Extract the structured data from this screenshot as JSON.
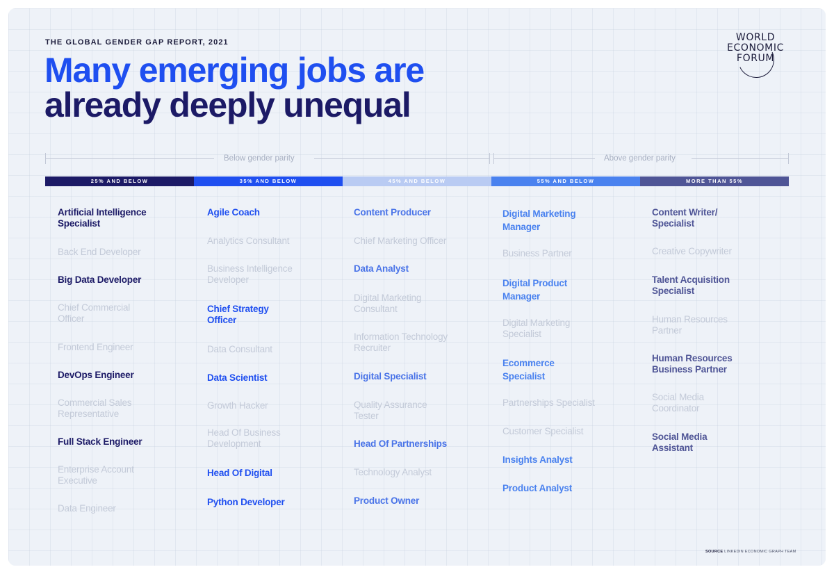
{
  "header": {
    "report_label": "THE GLOBAL GENDER GAP REPORT, 2021",
    "title_line1": "Many emerging jobs are",
    "title_line2": "already deeply unequal"
  },
  "logo": {
    "line1": "WORLD",
    "line2": "ECONOMIC",
    "line3": "FORUM"
  },
  "parity": {
    "below": "Below gender parity",
    "above": "Above gender parity"
  },
  "colors": {
    "band_25": "#1c1a66",
    "band_35": "#1f4ff0",
    "band_45": "#b9cbf3",
    "band_55": "#4a82ef",
    "band_more": "#4f5596"
  },
  "chart_data": {
    "type": "table",
    "columns": [
      {
        "header": "25% AND BELOW",
        "color": "#1c1a66",
        "jobs": [
          {
            "name": "Artificial Intelligence Specialist",
            "highlight": true
          },
          {
            "name": "Back End Developer",
            "highlight": false
          },
          {
            "name": "Big Data Developer",
            "highlight": true
          },
          {
            "name": "Chief Commercial Officer",
            "highlight": false
          },
          {
            "name": "Frontend Engineer",
            "highlight": false
          },
          {
            "name": "DevOps Engineer",
            "highlight": true
          },
          {
            "name": "Commercial Sales Representative",
            "highlight": false
          },
          {
            "name": "Full Stack Engineer",
            "highlight": true
          },
          {
            "name": "Enterprise Account Executive",
            "highlight": false
          },
          {
            "name": "Data Engineer",
            "highlight": false
          }
        ]
      },
      {
        "header": "35% AND BELOW",
        "color": "#1f4ff0",
        "jobs": [
          {
            "name": "Agile Coach",
            "highlight": true
          },
          {
            "name": "Analytics Consultant",
            "highlight": false
          },
          {
            "name": "Business Intelligence Developer",
            "highlight": false
          },
          {
            "name": "Chief Strategy Officer",
            "highlight": true
          },
          {
            "name": "Data Consultant",
            "highlight": false
          },
          {
            "name": "Data Scientist",
            "highlight": true
          },
          {
            "name": "Growth Hacker",
            "highlight": false
          },
          {
            "name": "Head Of Business Development",
            "highlight": false
          },
          {
            "name": "Head Of Digital",
            "highlight": true
          },
          {
            "name": "Python Developer",
            "highlight": true
          }
        ]
      },
      {
        "header": "45% AND BELOW",
        "color": "#b9cbf3",
        "jobs": [
          {
            "name": "Content Producer",
            "highlight": true
          },
          {
            "name": "Chief Marketing Officer",
            "highlight": false
          },
          {
            "name": "Data Analyst",
            "highlight": true
          },
          {
            "name": "Digital Marketing Consultant",
            "highlight": false
          },
          {
            "name": "Information Technology Recruiter",
            "highlight": false
          },
          {
            "name": "Digital Specialist",
            "highlight": true
          },
          {
            "name": "Quality Assurance Tester",
            "highlight": false
          },
          {
            "name": "Head Of Partnerships",
            "highlight": true
          },
          {
            "name": "Technology Analyst",
            "highlight": false
          },
          {
            "name": "Product Owner",
            "highlight": true
          }
        ]
      },
      {
        "header": "55% AND BELOW",
        "color": "#4a82ef",
        "jobs": [
          {
            "name": "Digital Marketing Manager",
            "highlight": true
          },
          {
            "name": "Business Partner",
            "highlight": false
          },
          {
            "name": "Digital Product Manager",
            "highlight": true
          },
          {
            "name": "Digital Marketing Specialist",
            "highlight": false
          },
          {
            "name": "Ecommerce Specialist",
            "highlight": true
          },
          {
            "name": "Partnerships Specialist",
            "highlight": false
          },
          {
            "name": "Customer Specialist",
            "highlight": false
          },
          {
            "name": "Insights Analyst",
            "highlight": true
          },
          {
            "name": "Product Analyst",
            "highlight": true
          }
        ]
      },
      {
        "header": "MORE THAN 55%",
        "color": "#4f5596",
        "jobs": [
          {
            "name": "Content Writer/ Specialist",
            "highlight": true
          },
          {
            "name": "Creative Copywriter",
            "highlight": false
          },
          {
            "name": "Talent Acquisition Specialist",
            "highlight": true
          },
          {
            "name": "Human Resources Partner",
            "highlight": false
          },
          {
            "name": "Human Resources Business Partner",
            "highlight": true
          },
          {
            "name": "Social Media Coordinator",
            "highlight": false
          },
          {
            "name": "Social Media Assistant",
            "highlight": true
          }
        ]
      }
    ]
  },
  "footer": {
    "source_label": "SOURCE",
    "source_text": "LINKEDIN ECONOMIC GRAPH TEAM"
  }
}
